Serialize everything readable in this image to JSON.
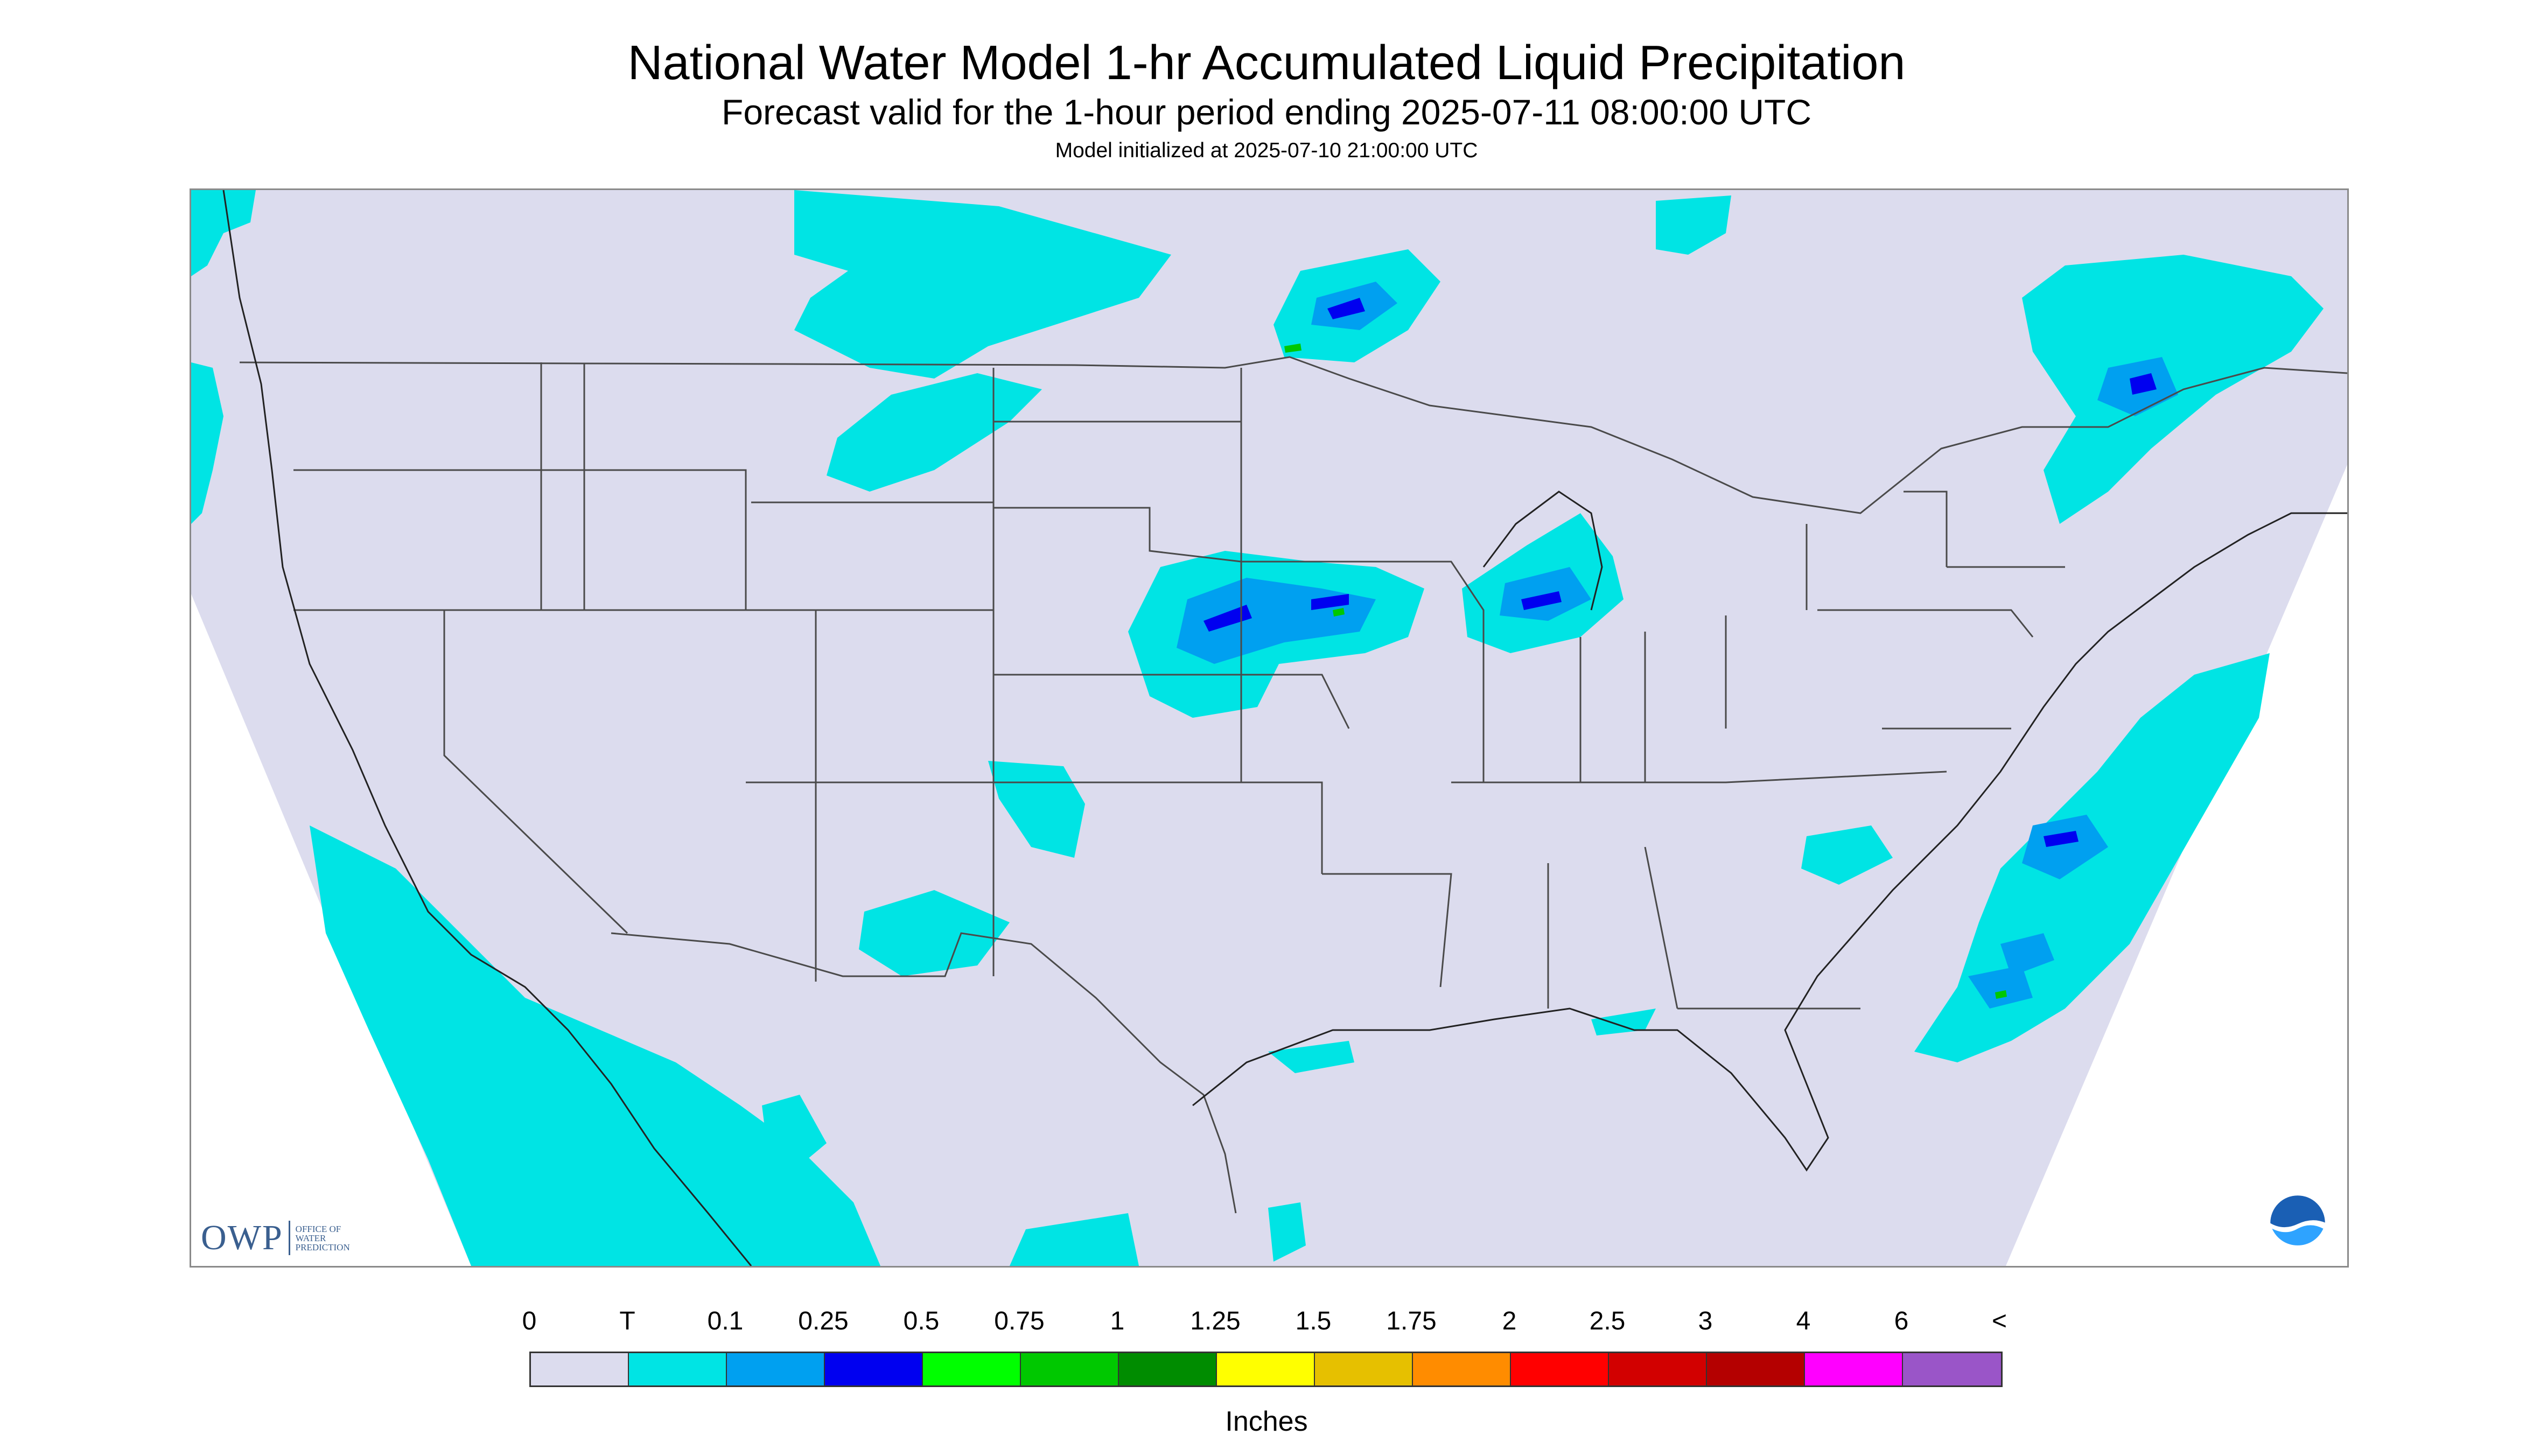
{
  "header": {
    "title": "National Water Model 1-hr Accumulated Liquid Precipitation",
    "subtitle": "Forecast valid for the 1-hour period ending 2025-07-11 08:00:00 UTC",
    "init_line": "Model initialized at 2025-07-10 21:00:00 UTC"
  },
  "map": {
    "background_color": "#dcdcee",
    "outside_domain_color": "#ffffff",
    "boundary_color": "#4a4a4a",
    "precip_regions": [
      {
        "name": "Pacific coast / Baja offshore",
        "category": "T"
      },
      {
        "name": "Northern Rockies / Montana",
        "category": "T"
      },
      {
        "name": "Minnesota / Lake of the Woods",
        "category": "0.25"
      },
      {
        "name": "Nebraska / Iowa",
        "category": "0.25"
      },
      {
        "name": "Lake Michigan / Illinois",
        "category": "0.25"
      },
      {
        "name": "Quebec / New England",
        "category": "0.25"
      },
      {
        "name": "Atlantic offshore",
        "category": "0.25"
      },
      {
        "name": "Southern Plains / Gulf",
        "category": "T"
      }
    ]
  },
  "logos": {
    "owp_text": "OWP",
    "owp_subtext": "OFFICE OF\nWATER\nPREDICTION",
    "noaa_icon": "noaa-logo"
  },
  "legend": {
    "labels": [
      "0",
      "T",
      "0.1",
      "0.25",
      "0.5",
      "0.75",
      "1",
      "1.25",
      "1.5",
      "1.75",
      "2",
      "2.5",
      "3",
      "4",
      "6",
      "<"
    ],
    "colors": [
      "#dcdcee",
      "#00e4e4",
      "#00a0f0",
      "#0000f0",
      "#00ff00",
      "#00c800",
      "#008c00",
      "#ffff00",
      "#e6c000",
      "#ff8c00",
      "#ff0000",
      "#d20000",
      "#b40000",
      "#ff00ff",
      "#9a55c8"
    ],
    "units": "Inches"
  }
}
